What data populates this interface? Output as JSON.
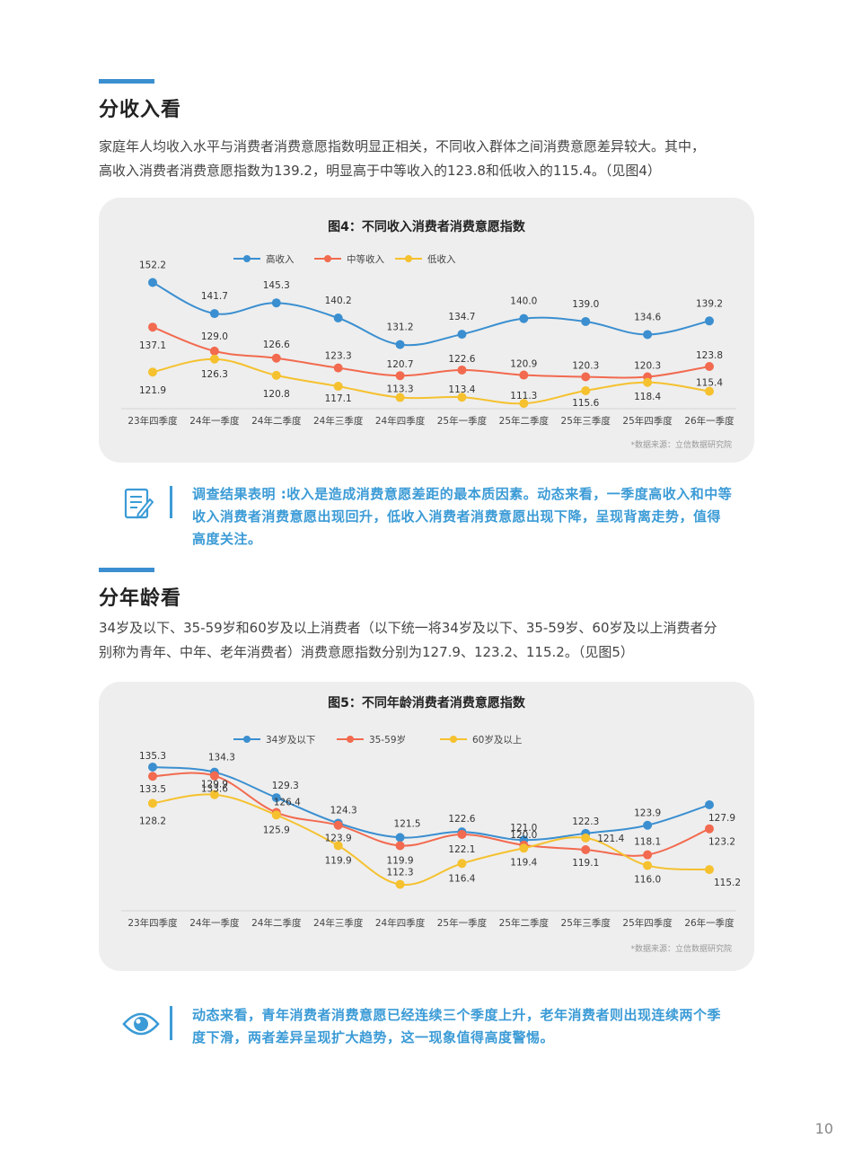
{
  "section1": {
    "title": "分收入看",
    "para1": "家庭年人均收入水平与消费者消费意愿指数明显正相关，不同收入群体之间消费意愿差异较大。其中，",
    "para2": "高收入消费者消费意愿指数为139.2，明显高于中等收入的123.8和低收入的115.4。（见图4）"
  },
  "note1": {
    "line1": "调查结果表明 :收入是造成消费意愿差距的最本质因素。动态来看，一季度高收入和中等",
    "line2": "收入消费者消费意愿出现回升，低收入消费者消费意愿出现下降，呈现背离走势，值得",
    "line3": "高度关注。",
    "icon": "document-pencil-icon"
  },
  "section2": {
    "title": "分年龄看",
    "para1": "34岁及以下、35-59岁和60岁及以上消费者（以下统一将34岁及以下、35-59岁、60岁及以上消费者分",
    "para2": "别称为青年、中年、老年消费者）消费意愿指数分别为127.9、123.2、115.2。（见图5）"
  },
  "note2": {
    "line1": "动态来看，青年消费者消费意愿已经连续三个季度上升，老年消费者则出现连续两个季",
    "line2": "度下滑，两者差异呈现扩大趋势，这一现象值得高度警惕。",
    "icon": "eye-icon"
  },
  "page_number": "10",
  "colors": {
    "blue": "#3b8fd0",
    "orange": "#f26a4f",
    "yellow": "#f5c12e"
  },
  "chart_data": [
    {
      "type": "line",
      "title": "图4：不同收入消费者消费意愿指数",
      "source": "*数据来源：立信数据研究院",
      "categories": [
        "23年四季度",
        "24年一季度",
        "24年二季度",
        "24年三季度",
        "24年四季度",
        "25年一季度",
        "25年二季度",
        "25年三季度",
        "25年四季度",
        "26年一季度"
      ],
      "ylim": [
        108,
        156
      ],
      "legend_position": "top",
      "series": [
        {
          "name": "高收入",
          "color": "#3b8fd0",
          "values": [
            152.2,
            141.7,
            145.3,
            140.2,
            131.2,
            134.7,
            140.0,
            139.0,
            134.6,
            139.2
          ]
        },
        {
          "name": "中等收入",
          "color": "#f26a4f",
          "values": [
            137.1,
            129.0,
            126.6,
            123.3,
            120.7,
            122.6,
            120.9,
            120.3,
            120.3,
            123.8
          ]
        },
        {
          "name": "低收入",
          "color": "#f5c12e",
          "values": [
            121.9,
            126.3,
            120.8,
            117.1,
            113.3,
            113.4,
            111.3,
            115.6,
            118.4,
            115.4
          ]
        }
      ]
    },
    {
      "type": "line",
      "title": "图5：不同年龄消费者消费意愿指数",
      "source": "*数据来源：立信数据研究院",
      "categories": [
        "23年四季度",
        "24年一季度",
        "24年二季度",
        "24年三季度",
        "24年四季度",
        "25年一季度",
        "25年二季度",
        "25年三季度",
        "25年四季度",
        "26年一季度"
      ],
      "ylim": [
        108,
        139
      ],
      "legend_position": "top",
      "series": [
        {
          "name": "34岁及以下",
          "color": "#3b8fd0",
          "values": [
            135.3,
            134.3,
            129.3,
            124.3,
            121.5,
            122.6,
            121.0,
            122.3,
            123.9,
            127.9
          ]
        },
        {
          "name": "35-59岁",
          "color": "#f26a4f",
          "values": [
            133.5,
            133.6,
            126.4,
            123.9,
            119.9,
            122.1,
            120.0,
            119.1,
            118.1,
            123.2
          ]
        },
        {
          "name": "60岁及以上",
          "color": "#f5c12e",
          "values": [
            128.2,
            129.9,
            125.9,
            119.9,
            112.3,
            116.4,
            119.4,
            121.4,
            116.0,
            115.2
          ]
        }
      ]
    }
  ]
}
